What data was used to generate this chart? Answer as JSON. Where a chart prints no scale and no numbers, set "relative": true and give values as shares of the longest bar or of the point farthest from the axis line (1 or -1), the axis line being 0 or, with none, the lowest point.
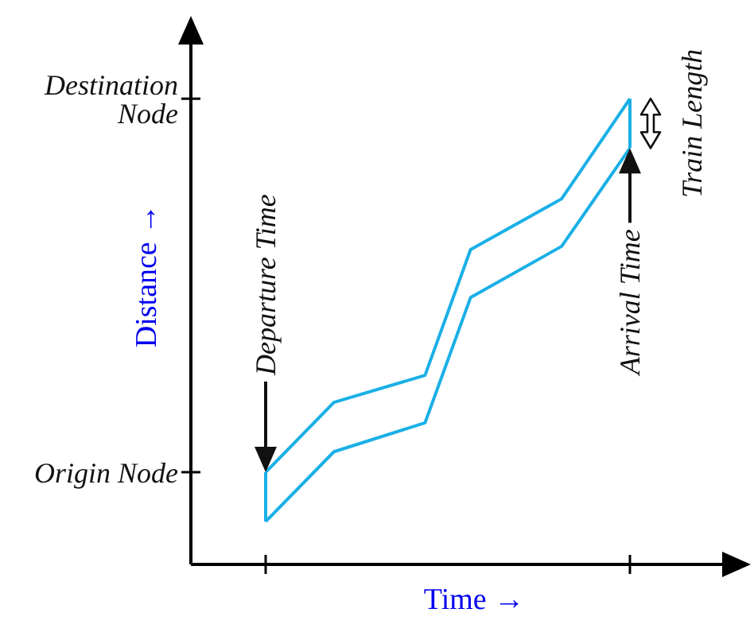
{
  "chart_data": {
    "type": "line",
    "relative": true,
    "xlabel": "Time →",
    "ylabel": "Distance →",
    "categories": [
      null,
      null,
      null,
      null,
      null,
      null,
      null,
      null,
      null,
      null,
      null,
      null,
      null,
      null,
      null,
      null,
      null
    ],
    "series": [
      {
        "color": "#1ab0e6",
        "values": [
          0.198,
          null,
          null,
          0.348,
          null,
          null,
          null,
          0.406,
          null,
          0.676,
          null,
          null,
          null,
          0.785,
          null,
          null,
          1
        ]
      },
      {
        "color": "#1ab0e6",
        "values": [
          0.092,
          null,
          null,
          0.242,
          null,
          null,
          null,
          0.304,
          null,
          0.573,
          null,
          null,
          null,
          0.683,
          null,
          null,
          0.894
        ]
      }
    ],
    "annotations": [
      "Destination Node",
      "Origin Node",
      "Departure Time",
      "Arrival Time",
      "Train Length"
    ]
  }
}
